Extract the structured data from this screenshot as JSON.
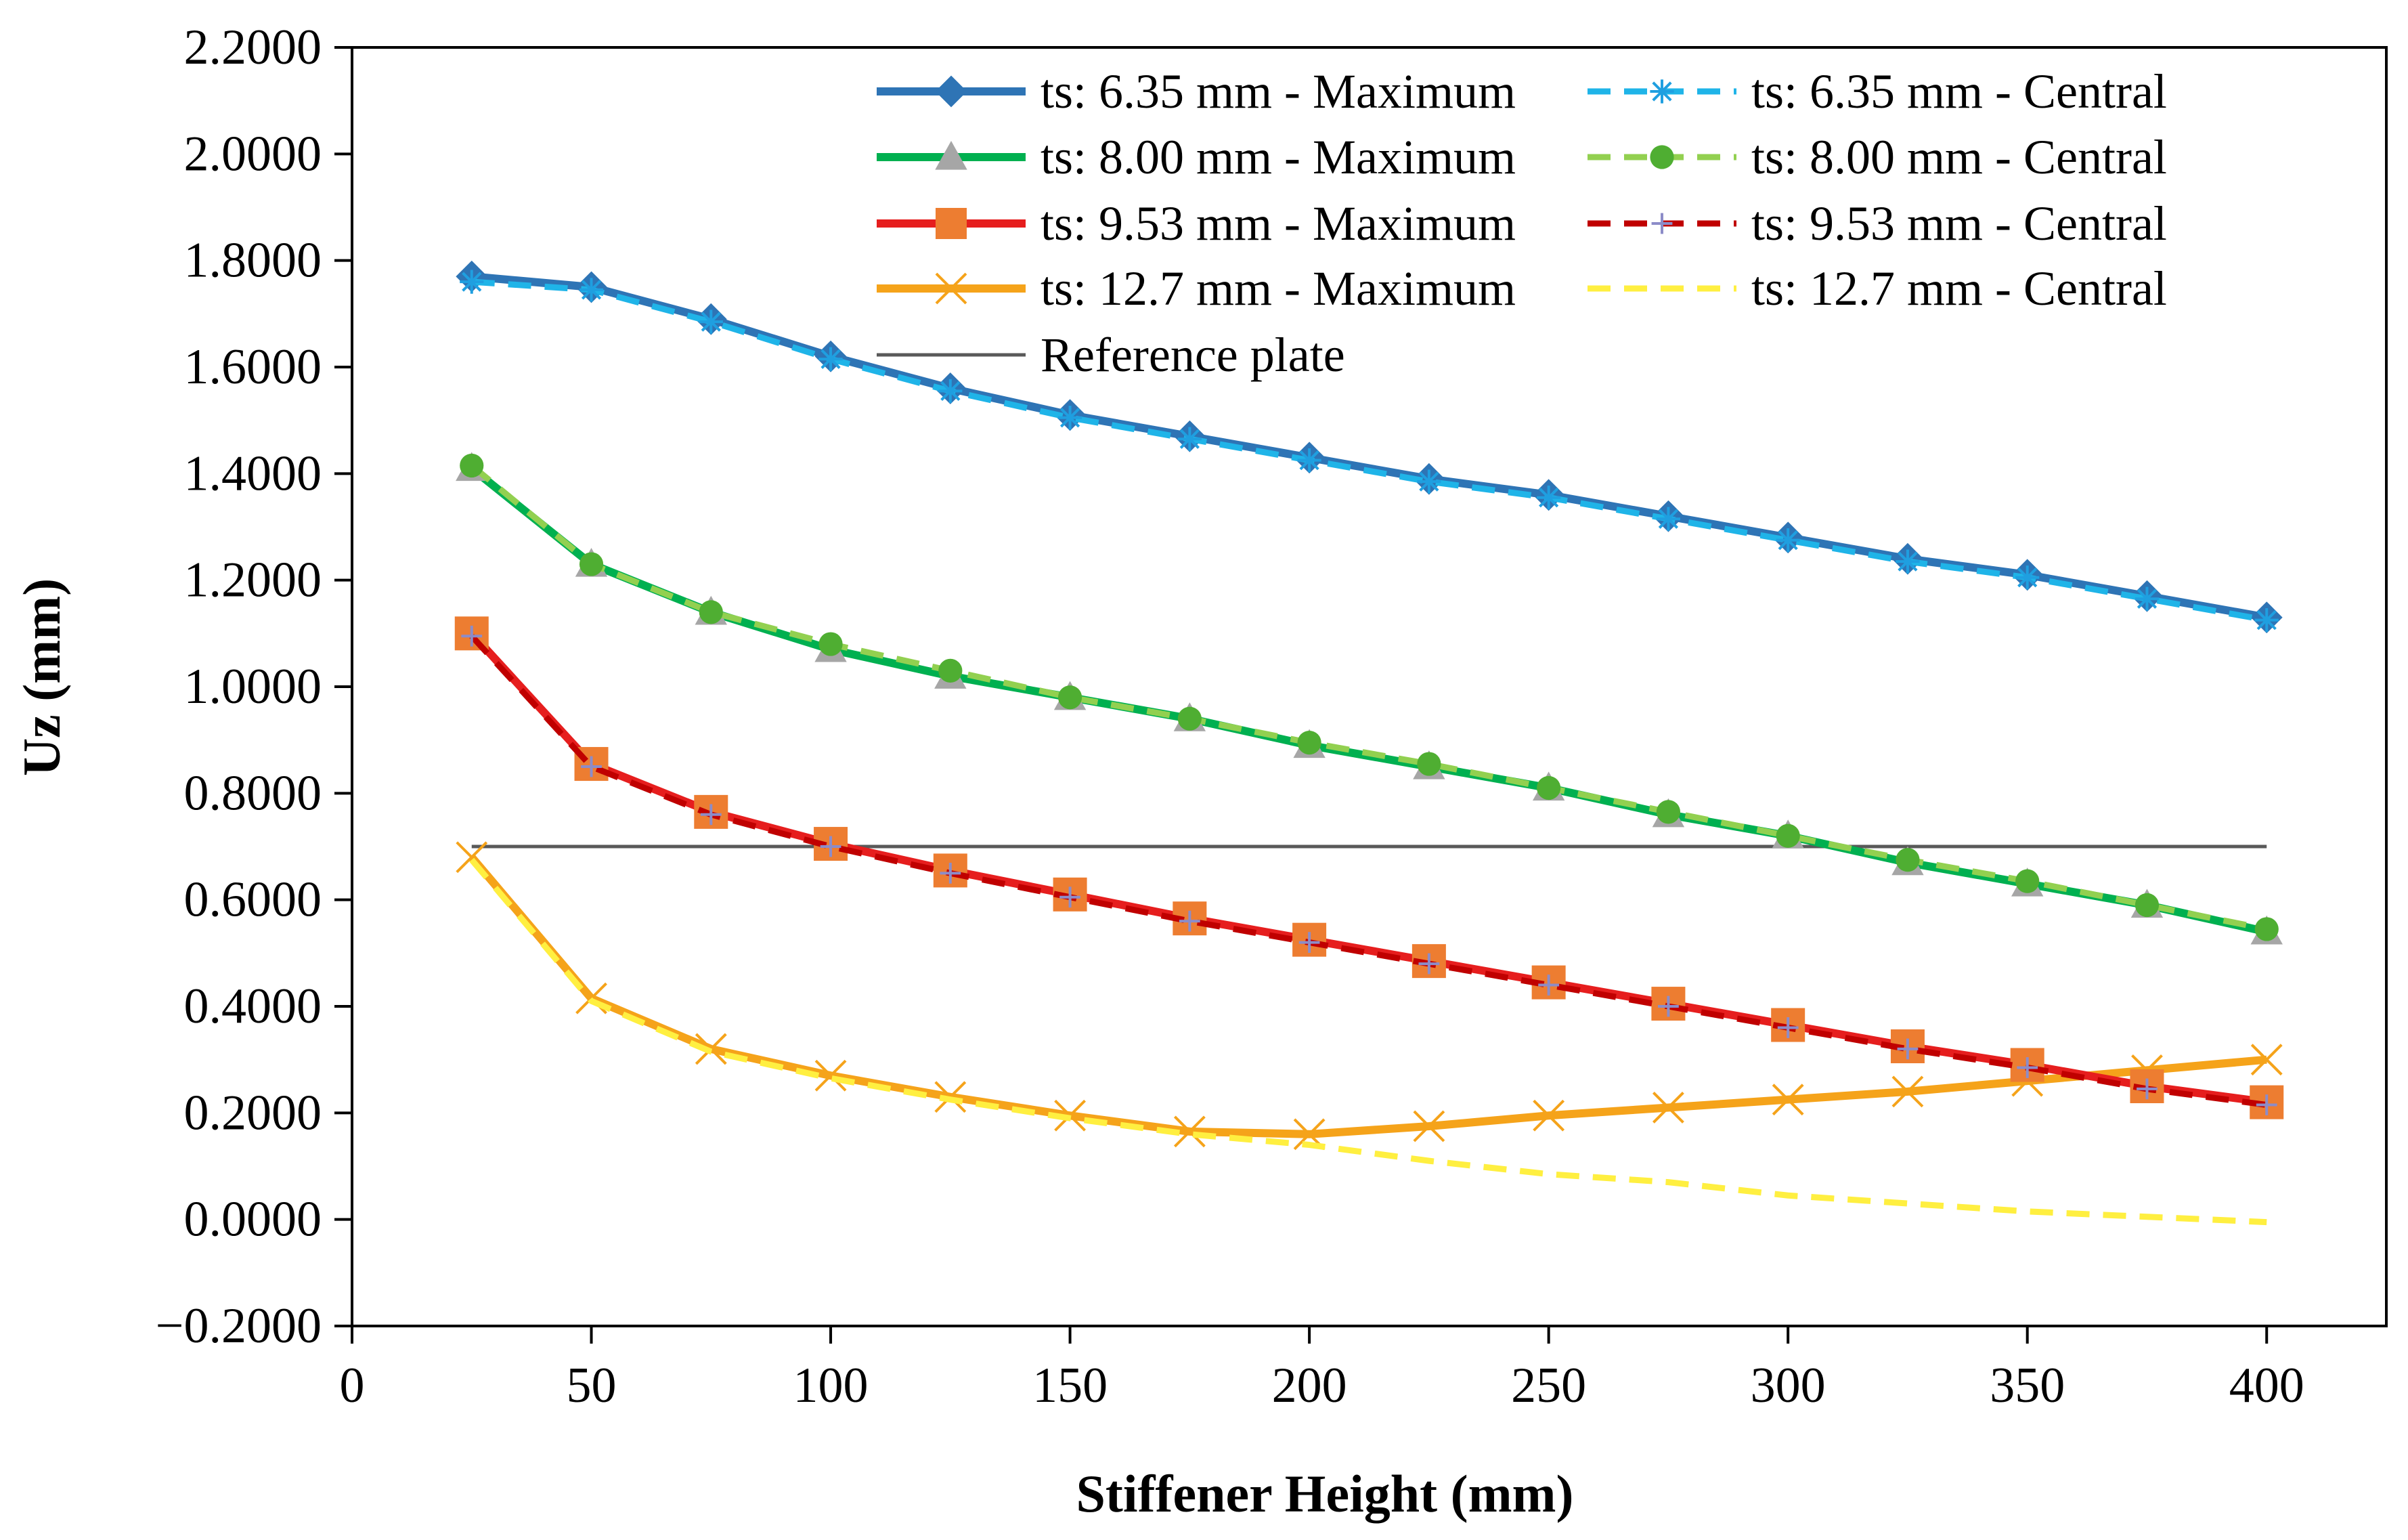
{
  "chart_data": {
    "type": "line",
    "title": "",
    "xlabel": "Stiffener Height (mm)",
    "ylabel": "Uz (mm)",
    "xlim": [
      0,
      425
    ],
    "ylim": [
      -0.2,
      2.2
    ],
    "x_ticks": [
      "0",
      "50",
      "100",
      "150",
      "200",
      "250",
      "300",
      "350",
      "400"
    ],
    "y_ticks": [
      "-0.2000",
      "0.0000",
      "0.2000",
      "0.4000",
      "0.6000",
      "0.8000",
      "1.0000",
      "1.2000",
      "1.4000",
      "1.6000",
      "1.8000",
      "2.0000",
      "2.2000"
    ],
    "x": [
      25,
      50,
      75,
      100,
      125,
      150,
      175,
      200,
      225,
      250,
      275,
      300,
      325,
      350,
      375,
      400
    ],
    "grid": false,
    "legend_position": "top-right",
    "series": [
      {
        "name": "ts: 6.35 mm - Maximum",
        "color": "#2e74b5",
        "dash": "solid",
        "marker": "diamond",
        "values": [
          1.77,
          1.75,
          1.69,
          1.62,
          1.56,
          1.51,
          1.47,
          1.43,
          1.39,
          1.36,
          1.32,
          1.28,
          1.24,
          1.21,
          1.17,
          1.13
        ]
      },
      {
        "name": "ts: 6.35 mm - Central",
        "color": "#1fb4e8",
        "dash": "dashed",
        "marker": "asterisk",
        "values": [
          1.76,
          1.745,
          1.685,
          1.615,
          1.555,
          1.505,
          1.465,
          1.425,
          1.385,
          1.355,
          1.315,
          1.275,
          1.235,
          1.205,
          1.165,
          1.125
        ]
      },
      {
        "name": "ts: 8.00 mm - Maximum",
        "color": "#00b050",
        "dash": "solid",
        "marker": "triangle",
        "values": [
          1.41,
          1.23,
          1.14,
          1.07,
          1.02,
          0.98,
          0.94,
          0.89,
          0.85,
          0.81,
          0.76,
          0.72,
          0.67,
          0.63,
          0.59,
          0.54
        ]
      },
      {
        "name": "ts: 8.00 mm - Central",
        "color": "#92d050",
        "dash": "dashed",
        "marker": "circle",
        "values": [
          1.415,
          1.23,
          1.14,
          1.08,
          1.03,
          0.98,
          0.94,
          0.895,
          0.855,
          0.81,
          0.765,
          0.72,
          0.675,
          0.635,
          0.59,
          0.545
        ]
      },
      {
        "name": "ts: 9.53 mm - Maximum",
        "color": "#e61e1e",
        "dash": "solid",
        "marker": "square",
        "values": [
          1.1,
          0.855,
          0.765,
          0.705,
          0.655,
          0.61,
          0.565,
          0.525,
          0.485,
          0.445,
          0.405,
          0.365,
          0.325,
          0.29,
          0.25,
          0.22
        ]
      },
      {
        "name": "ts: 9.53 mm - Central",
        "color": "#c00000",
        "dash": "dashed",
        "marker": "plus",
        "values": [
          1.095,
          0.85,
          0.76,
          0.7,
          0.65,
          0.605,
          0.56,
          0.52,
          0.48,
          0.44,
          0.4,
          0.36,
          0.32,
          0.285,
          0.245,
          0.215
        ]
      },
      {
        "name": "ts: 12.7 mm - Maximum",
        "color": "#f5a31a",
        "dash": "solid",
        "marker": "x",
        "values": [
          0.68,
          0.415,
          0.32,
          0.27,
          0.23,
          0.195,
          0.165,
          0.16,
          0.175,
          0.195,
          0.21,
          0.225,
          0.24,
          0.26,
          0.28,
          0.3
        ]
      },
      {
        "name": "ts: 12.7 mm - Central",
        "color": "#ffef40",
        "dash": "dashed",
        "marker": "none",
        "values": [
          0.675,
          0.41,
          0.315,
          0.265,
          0.225,
          0.19,
          0.16,
          0.14,
          0.11,
          0.085,
          0.07,
          0.045,
          0.03,
          0.015,
          0.005,
          -0.005
        ]
      },
      {
        "name": "Reference plate",
        "color": "#595959",
        "dash": "solid",
        "marker": "none",
        "values": [
          0.7,
          0.7,
          0.7,
          0.7,
          0.7,
          0.7,
          0.7,
          0.7,
          0.7,
          0.7,
          0.7,
          0.7,
          0.7,
          0.7,
          0.7,
          0.7
        ]
      }
    ]
  }
}
